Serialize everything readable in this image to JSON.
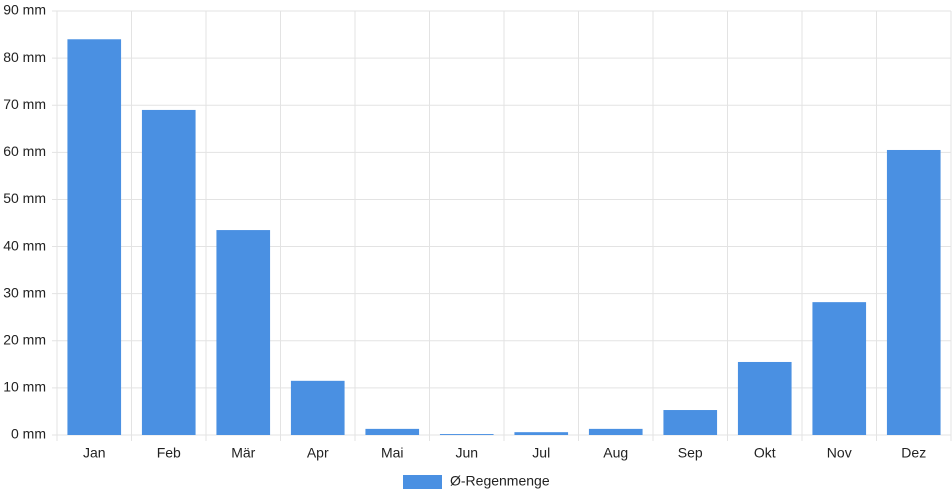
{
  "chart_data": {
    "type": "bar",
    "categories": [
      "Jan",
      "Feb",
      "Mär",
      "Apr",
      "Mai",
      "Jun",
      "Jul",
      "Aug",
      "Sep",
      "Okt",
      "Nov",
      "Dez"
    ],
    "series": [
      {
        "name": "Ø-Regenmenge",
        "color": "#4a90e2",
        "values": [
          84,
          69,
          43.5,
          11.5,
          1.3,
          0.2,
          0.6,
          1.3,
          5.3,
          15.5,
          28.2,
          60.5
        ]
      }
    ],
    "ylim": [
      0,
      90
    ],
    "yticks": [
      {
        "value": 0,
        "label": "0 mm"
      },
      {
        "value": 10,
        "label": "10 mm"
      },
      {
        "value": 20,
        "label": "20 mm"
      },
      {
        "value": 30,
        "label": "30 mm"
      },
      {
        "value": 40,
        "label": "40 mm"
      },
      {
        "value": 50,
        "label": "50 mm"
      },
      {
        "value": 60,
        "label": "60 mm"
      },
      {
        "value": 70,
        "label": "70 mm"
      },
      {
        "value": 80,
        "label": "80 mm"
      },
      {
        "value": 90,
        "label": "90 mm"
      }
    ],
    "grid": true,
    "legend": "bottom"
  }
}
